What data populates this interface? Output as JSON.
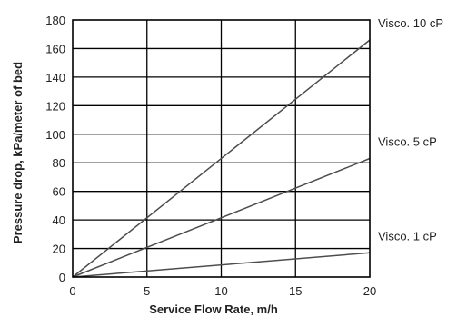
{
  "chart_data": {
    "type": "line",
    "title": "",
    "xlabel": "Service Flow Rate, m/h",
    "ylabel": "Pressure drop, kPa/meter of bed",
    "xlim": [
      0,
      20
    ],
    "ylim": [
      0,
      180
    ],
    "x_ticks": [
      0,
      5,
      10,
      15,
      20
    ],
    "y_ticks": [
      0,
      20,
      40,
      60,
      80,
      100,
      120,
      140,
      160,
      180
    ],
    "grid": true,
    "legend": "none",
    "series": [
      {
        "name": "Visco. 10 cP",
        "x": [
          0,
          20
        ],
        "y": [
          0,
          166
        ]
      },
      {
        "name": "Visco. 5 cP",
        "x": [
          0,
          20
        ],
        "y": [
          0,
          83
        ]
      },
      {
        "name": "Visco. 1 cP",
        "x": [
          0,
          20
        ],
        "y": [
          0,
          17
        ]
      }
    ],
    "colors": {
      "axis": "#000000",
      "grid": "#000000",
      "series": "#4d4d4d"
    }
  }
}
